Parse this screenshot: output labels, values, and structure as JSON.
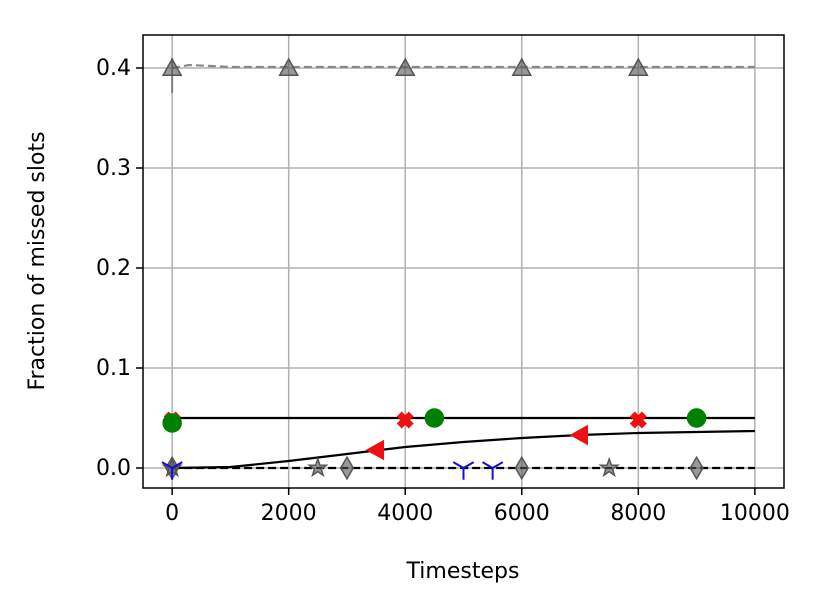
{
  "chart_data": {
    "type": "line",
    "xlabel": "Timesteps",
    "ylabel": "Fraction of missed slots",
    "xlim": [
      -500,
      10500
    ],
    "ylim": [
      -0.02,
      0.433
    ],
    "xticks": [
      0,
      2000,
      4000,
      6000,
      8000,
      10000
    ],
    "yticks": [
      {
        "value": 0,
        "label": "0.0"
      },
      0.1,
      0.2,
      0.3,
      0.4
    ],
    "grid": true,
    "series": [
      {
        "color": "#888888",
        "linestyle": "dashed",
        "x": [
          0,
          300,
          1000,
          10000
        ],
        "values": [
          0.4,
          0.403,
          0.401,
          0.401
        ]
      },
      {
        "color": "#555555",
        "linestyle": "none",
        "marker": "triangle-up",
        "x": [
          0,
          2000,
          4000,
          6000,
          8000
        ],
        "values": [
          0.4,
          0.4,
          0.4,
          0.4,
          0.4
        ],
        "errorbar": {
          "x": 0,
          "low": 0.375,
          "high": 0.41
        }
      },
      {
        "color": "#000000",
        "linestyle": "solid",
        "x": [
          0,
          10000
        ],
        "values": [
          0.05,
          0.05
        ]
      },
      {
        "color": "#ee1111",
        "linestyle": "none",
        "marker": "x",
        "x": [
          0,
          4000,
          8000
        ],
        "values": [
          0.048,
          0.048,
          0.048
        ]
      },
      {
        "color": "#008000",
        "linestyle": "none",
        "marker": "circle",
        "x": [
          0,
          4500,
          9000
        ],
        "values": [
          0.045,
          0.05,
          0.05
        ]
      },
      {
        "color": "#000000",
        "linestyle": "solid",
        "x": [
          0,
          1000,
          2000,
          3000,
          4000,
          5000,
          6000,
          7000,
          8000,
          9000,
          10000
        ],
        "values": [
          0,
          0.001,
          0.007,
          0.014,
          0.021,
          0.026,
          0.03,
          0.033,
          0.035,
          0.036,
          0.037
        ]
      },
      {
        "color": "#ee1111",
        "linestyle": "none",
        "marker": "triangle-left",
        "x": [
          3500,
          7000
        ],
        "values": [
          0.018,
          0.033
        ]
      },
      {
        "color": "#000000",
        "linestyle": "dashed",
        "x": [
          0,
          10000
        ],
        "values": [
          0,
          0
        ]
      },
      {
        "color": "#555555",
        "linestyle": "none",
        "marker": "star",
        "x": [
          0,
          2500,
          7500
        ],
        "values": [
          0,
          0,
          0
        ]
      },
      {
        "color": "#555555",
        "linestyle": "none",
        "marker": "diamond",
        "x": [
          0,
          3000,
          6000,
          9000
        ],
        "values": [
          0,
          0,
          0,
          0
        ]
      },
      {
        "color": "#1010dd",
        "linestyle": "none",
        "marker": "tri-down",
        "x": [
          0,
          5000,
          5500
        ],
        "values": [
          0,
          0,
          0
        ]
      }
    ]
  }
}
